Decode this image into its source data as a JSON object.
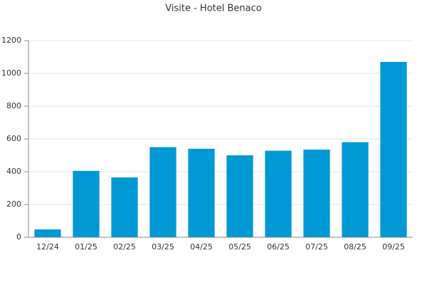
{
  "chart_data": {
    "type": "bar",
    "title": "Visite - Hotel Benaco",
    "categories": [
      "12/24",
      "01/25",
      "02/25",
      "03/25",
      "04/25",
      "05/25",
      "06/25",
      "07/25",
      "08/25",
      "09/25"
    ],
    "values": [
      48,
      405,
      365,
      550,
      540,
      500,
      528,
      535,
      580,
      1070
    ],
    "color": "#0099d6",
    "ylim": [
      0,
      1200
    ],
    "yticks": [
      0,
      200,
      400,
      600,
      800,
      1000,
      1200
    ],
    "grid": true
  }
}
